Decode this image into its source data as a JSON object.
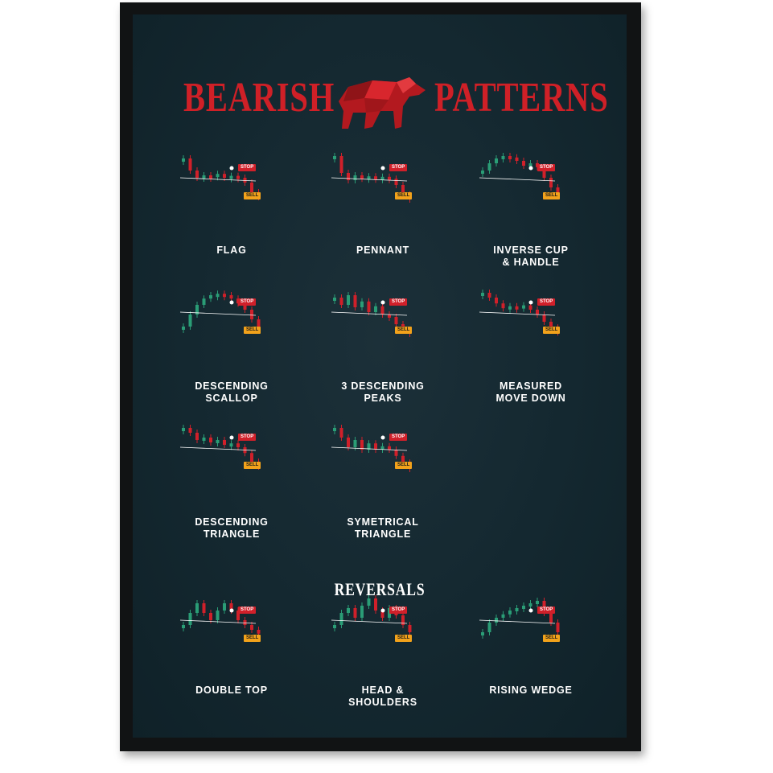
{
  "title": {
    "left": "BEARISH",
    "right": "PATTERNS"
  },
  "section_reversals": "REVERSALS",
  "tags": {
    "stop": "STOP",
    "sell": "SELL"
  },
  "colors": {
    "background": "#142830",
    "bear_red": "#d0202a",
    "bull_green": "#2a9d76",
    "sell_orange": "#f2a21b"
  },
  "patterns": [
    {
      "label": "FLAG"
    },
    {
      "label": "PENNANT"
    },
    {
      "label": "INVERSE CUP\n& HANDLE"
    },
    {
      "label": "DESCENDING\nSCALLOP"
    },
    {
      "label": "3 DESCENDING\nPEAKS"
    },
    {
      "label": "MEASURED\nMOVE DOWN"
    },
    {
      "label": "DESCENDING\nTRIANGLE"
    },
    {
      "label": "SYMETRICAL\nTRIANGLE"
    },
    {
      "label": "DOUBLE TOP"
    },
    {
      "label": "HEAD &\nSHOULDERS"
    },
    {
      "label": "RISING WEDGE"
    }
  ],
  "icons": [
    "bear-icon"
  ]
}
